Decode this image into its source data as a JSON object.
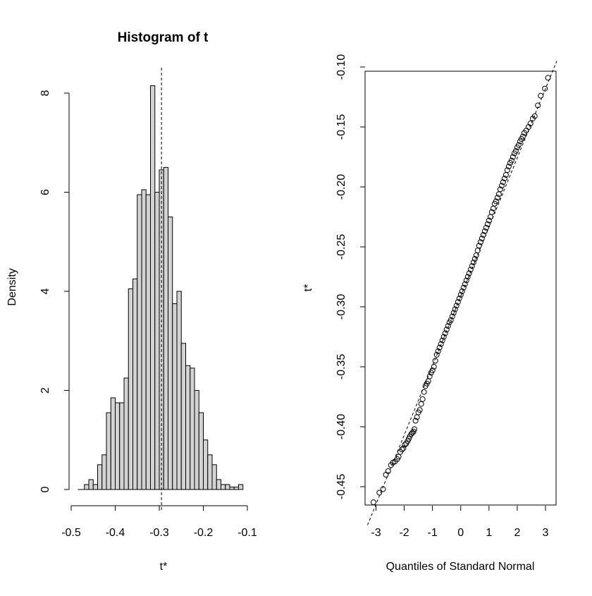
{
  "chart_data": [
    {
      "type": "bar",
      "title": "Histogram of t",
      "xlabel": "t*",
      "ylabel": "Density",
      "xlim": [
        -0.5,
        -0.1
      ],
      "ylim": [
        0,
        8.5
      ],
      "x_ticks": [
        "-0.5",
        "-0.4",
        "-0.3",
        "-0.2",
        "-0.1"
      ],
      "y_ticks": [
        "0",
        "2",
        "4",
        "6",
        "8"
      ],
      "bin_width": 0.01,
      "bin_starts": [
        -0.47,
        -0.46,
        -0.45,
        -0.44,
        -0.43,
        -0.42,
        -0.41,
        -0.4,
        -0.39,
        -0.38,
        -0.37,
        -0.36,
        -0.35,
        -0.34,
        -0.33,
        -0.32,
        -0.31,
        -0.3,
        -0.29,
        -0.28,
        -0.27,
        -0.26,
        -0.25,
        -0.24,
        -0.23,
        -0.22,
        -0.21,
        -0.2,
        -0.19,
        -0.18,
        -0.17,
        -0.16,
        -0.15,
        -0.14,
        -0.13,
        -0.12
      ],
      "values": [
        0.1,
        0.2,
        0.1,
        0.5,
        0.7,
        1.55,
        1.85,
        1.75,
        1.75,
        2.25,
        4.05,
        4.25,
        5.95,
        6.05,
        5.95,
        8.15,
        6.0,
        6.45,
        6.5,
        5.5,
        3.75,
        4.0,
        2.95,
        2.5,
        2.45,
        2.0,
        1.55,
        1.0,
        0.7,
        0.5,
        0.2,
        0.1,
        0.1,
        0.05,
        0.05,
        0.1
      ],
      "reference_line": {
        "x": -0.295,
        "style": "dashed"
      },
      "colors": {
        "bar_fill": "#d3d3d3",
        "bar_stroke": "#000000"
      }
    },
    {
      "type": "scatter",
      "title": "",
      "xlabel": "Quantiles of Standard Normal",
      "ylabel": "t*",
      "xlim": [
        -3.3,
        3.4
      ],
      "ylim": [
        -0.48,
        -0.095
      ],
      "x_ticks": [
        "-3",
        "-2",
        "-1",
        "0",
        "1",
        "2",
        "3"
      ],
      "y_ticks": [
        "-0.45",
        "-0.40",
        "-0.35",
        "-0.30",
        "-0.25",
        "-0.20",
        "-0.15",
        "-0.10"
      ],
      "reference_line": {
        "style": "dashed",
        "points": [
          [
            -3.3,
            -0.482
          ],
          [
            3.4,
            -0.095
          ]
        ]
      },
      "points": [
        [
          -3.09,
          -0.463
        ],
        [
          -2.88,
          -0.455
        ],
        [
          -2.75,
          -0.452
        ],
        [
          -2.65,
          -0.44
        ],
        [
          -2.57,
          -0.437
        ],
        [
          -2.47,
          -0.432
        ],
        [
          -2.4,
          -0.43
        ],
        [
          -2.33,
          -0.429
        ],
        [
          -2.25,
          -0.427
        ],
        [
          -2.2,
          -0.425
        ],
        [
          -2.14,
          -0.421
        ],
        [
          -2.08,
          -0.419
        ],
        [
          -2.03,
          -0.418
        ],
        [
          -1.98,
          -0.415
        ],
        [
          -1.93,
          -0.414
        ],
        [
          -1.88,
          -0.412
        ],
        [
          -1.84,
          -0.41
        ],
        [
          -1.8,
          -0.408
        ],
        [
          -1.75,
          -0.406
        ],
        [
          -1.71,
          -0.405
        ],
        [
          -1.67,
          -0.404
        ],
        [
          -1.64,
          -0.402
        ],
        [
          -1.6,
          -0.395
        ],
        [
          -1.55,
          -0.392
        ],
        [
          -1.5,
          -0.388
        ],
        [
          -1.45,
          -0.386
        ],
        [
          -1.4,
          -0.381
        ],
        [
          -1.35,
          -0.377
        ],
        [
          -1.3,
          -0.371
        ],
        [
          -1.25,
          -0.366
        ],
        [
          -1.2,
          -0.364
        ],
        [
          -1.15,
          -0.362
        ],
        [
          -1.1,
          -0.358
        ],
        [
          -1.05,
          -0.355
        ],
        [
          -1.0,
          -0.353
        ],
        [
          -0.95,
          -0.35
        ],
        [
          -0.9,
          -0.345
        ],
        [
          -0.85,
          -0.34
        ],
        [
          -0.8,
          -0.337
        ],
        [
          -0.75,
          -0.334
        ],
        [
          -0.7,
          -0.331
        ],
        [
          -0.65,
          -0.328
        ],
        [
          -0.6,
          -0.325
        ],
        [
          -0.55,
          -0.322
        ],
        [
          -0.5,
          -0.319
        ],
        [
          -0.45,
          -0.316
        ],
        [
          -0.4,
          -0.313
        ],
        [
          -0.35,
          -0.311
        ],
        [
          -0.3,
          -0.308
        ],
        [
          -0.25,
          -0.305
        ],
        [
          -0.2,
          -0.302
        ],
        [
          -0.15,
          -0.299
        ],
        [
          -0.1,
          -0.296
        ],
        [
          -0.05,
          -0.293
        ],
        [
          0.0,
          -0.29
        ],
        [
          0.05,
          -0.287
        ],
        [
          0.1,
          -0.284
        ],
        [
          0.15,
          -0.281
        ],
        [
          0.2,
          -0.278
        ],
        [
          0.25,
          -0.275
        ],
        [
          0.3,
          -0.272
        ],
        [
          0.35,
          -0.269
        ],
        [
          0.4,
          -0.266
        ],
        [
          0.45,
          -0.263
        ],
        [
          0.5,
          -0.26
        ],
        [
          0.55,
          -0.257
        ],
        [
          0.6,
          -0.253
        ],
        [
          0.65,
          -0.249
        ],
        [
          0.7,
          -0.246
        ],
        [
          0.75,
          -0.243
        ],
        [
          0.8,
          -0.24
        ],
        [
          0.85,
          -0.237
        ],
        [
          0.9,
          -0.234
        ],
        [
          0.95,
          -0.231
        ],
        [
          1.0,
          -0.228
        ],
        [
          1.05,
          -0.225
        ],
        [
          1.1,
          -0.221
        ],
        [
          1.15,
          -0.218
        ],
        [
          1.2,
          -0.214
        ],
        [
          1.25,
          -0.212
        ],
        [
          1.3,
          -0.209
        ],
        [
          1.35,
          -0.206
        ],
        [
          1.4,
          -0.202
        ],
        [
          1.45,
          -0.199
        ],
        [
          1.5,
          -0.196
        ],
        [
          1.55,
          -0.193
        ],
        [
          1.6,
          -0.19
        ],
        [
          1.65,
          -0.186
        ],
        [
          1.7,
          -0.183
        ],
        [
          1.75,
          -0.18
        ],
        [
          1.8,
          -0.178
        ],
        [
          1.85,
          -0.175
        ],
        [
          1.9,
          -0.172
        ],
        [
          1.95,
          -0.17
        ],
        [
          2.0,
          -0.167
        ],
        [
          2.05,
          -0.165
        ],
        [
          2.1,
          -0.162
        ],
        [
          2.15,
          -0.16
        ],
        [
          2.2,
          -0.158
        ],
        [
          2.25,
          -0.155
        ],
        [
          2.32,
          -0.153
        ],
        [
          2.4,
          -0.15
        ],
        [
          2.47,
          -0.147
        ],
        [
          2.55,
          -0.143
        ],
        [
          2.62,
          -0.141
        ],
        [
          2.73,
          -0.132
        ],
        [
          2.83,
          -0.124
        ],
        [
          2.98,
          -0.118
        ],
        [
          3.09,
          -0.109
        ]
      ],
      "colors": {
        "point_stroke": "#000000",
        "point_fill": "none"
      }
    }
  ]
}
